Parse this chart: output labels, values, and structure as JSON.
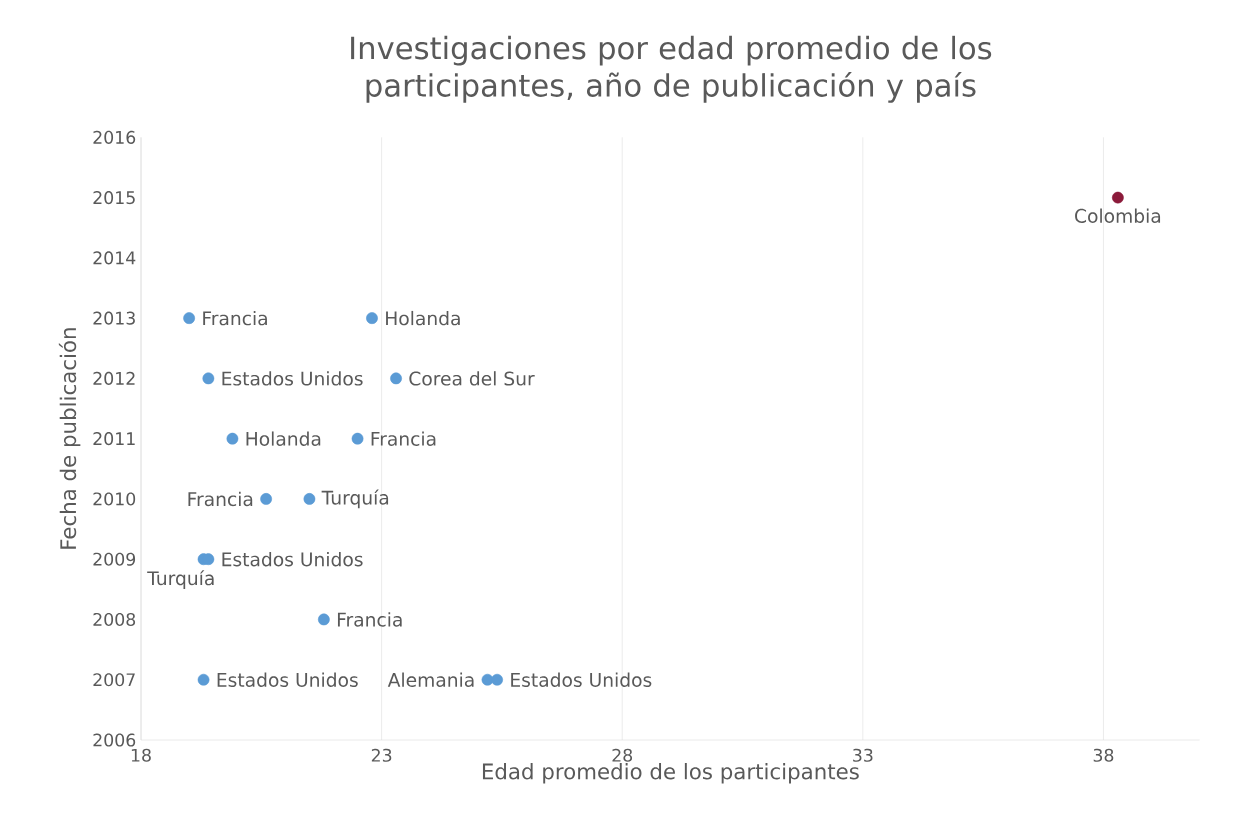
{
  "chart_data": {
    "type": "scatter",
    "title": "Investigaciones por edad promedio de los participantes, año de publicación y país",
    "xlabel": "Edad promedio de los participantes",
    "ylabel": "Fecha de publicación",
    "x": [
      19.0,
      22.8,
      19.4,
      23.3,
      19.9,
      22.5,
      20.6,
      21.5,
      19.3,
      19.4,
      21.8,
      19.3,
      25.2,
      25.4,
      38.3
    ],
    "values": [
      2013,
      2013,
      2012,
      2012,
      2011,
      2011,
      2010,
      2010,
      2009,
      2009,
      2008,
      2007,
      2007,
      2007,
      2015
    ],
    "colors": [
      "#5b9bd5",
      "#5b9bd5",
      "#5b9bd5",
      "#5b9bd5",
      "#5b9bd5",
      "#5b9bd5",
      "#5b9bd5",
      "#5b9bd5",
      "#5b9bd5",
      "#5b9bd5",
      "#5b9bd5",
      "#5b9bd5",
      "#5b9bd5",
      "#5b9bd5",
      "#8b1a3a"
    ],
    "xlim": [
      18,
      40
    ],
    "xticks": [
      18,
      23,
      28,
      33,
      38
    ],
    "ylim": [
      2006,
      2016
    ],
    "yticks": [
      2006,
      2007,
      2008,
      2009,
      2010,
      2011,
      2012,
      2013,
      2014,
      2015,
      2016
    ],
    "grid": "x",
    "annotations": [
      {
        "text": "Francia",
        "x": 19.0,
        "y": 2013
      },
      {
        "text": "Holanda",
        "x": 22.8,
        "y": 2013
      },
      {
        "text": "Estados Unidos",
        "x": 19.4,
        "y": 2012
      },
      {
        "text": "Corea del Sur",
        "x": 23.3,
        "y": 2012
      },
      {
        "text": "Holanda",
        "x": 19.9,
        "y": 2011
      },
      {
        "text": "Francia",
        "x": 22.5,
        "y": 2011
      },
      {
        "text": "Francia",
        "x": 20.6,
        "y": 2010
      },
      {
        "text": "Turquía",
        "x": 21.5,
        "y": 2010
      },
      {
        "text": "Turquía",
        "x": 19.3,
        "y": 2009
      },
      {
        "text": "Estados Unidos",
        "x": 19.4,
        "y": 2009
      },
      {
        "text": "Francia",
        "x": 21.8,
        "y": 2008
      },
      {
        "text": "Estados Unidos",
        "x": 19.3,
        "y": 2007
      },
      {
        "text": "Alemania",
        "x": 25.2,
        "y": 2007
      },
      {
        "text": "Estados Unidos",
        "x": 25.4,
        "y": 2007
      },
      {
        "text": "Colombia",
        "x": 38.3,
        "y": 2015
      }
    ]
  }
}
